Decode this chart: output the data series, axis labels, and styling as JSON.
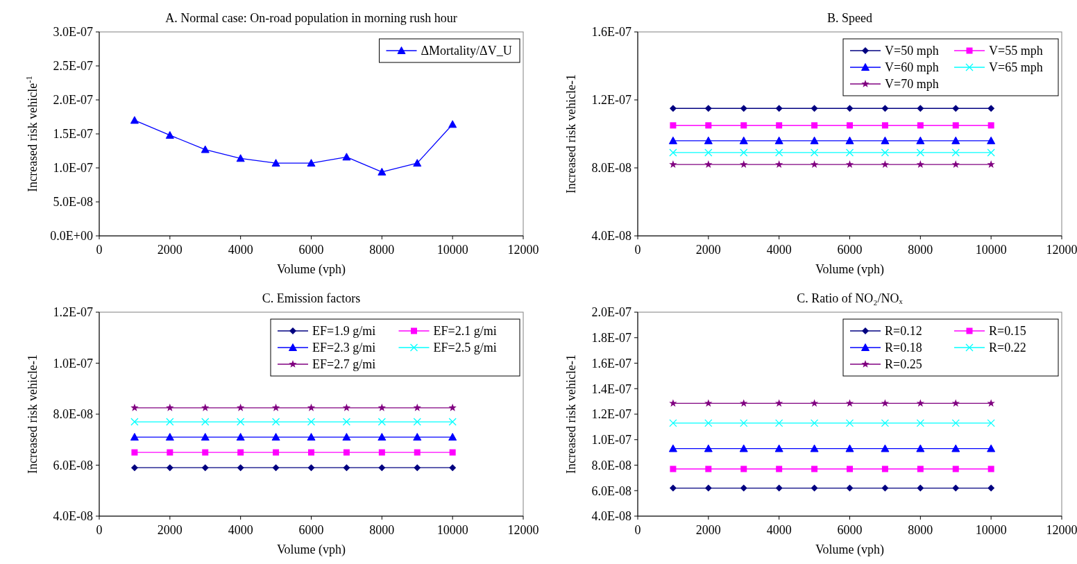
{
  "chart_data": [
    {
      "type": "line",
      "title": "A. Normal case: On-road population in morning rush hour",
      "xlabel": "Volume (vph)",
      "ylabel": "Increased risk vehicle$^{-1}$",
      "x": [
        1000,
        2000,
        3000,
        4000,
        5000,
        6000,
        7000,
        8000,
        9000,
        10000
      ],
      "xlim": [
        0,
        12000
      ],
      "xticks": [
        0,
        2000,
        4000,
        6000,
        8000,
        10000,
        12000
      ],
      "ylim": [
        0,
        3e-07
      ],
      "yticks": [
        {
          "value": 0,
          "label": "0.0E+00"
        },
        {
          "value": 5e-08,
          "label": "5.0E-08"
        },
        {
          "value": 1e-07,
          "label": "1.0E-07"
        },
        {
          "value": 1.5e-07,
          "label": "1.5E-07"
        },
        {
          "value": 2e-07,
          "label": "2.0E-07"
        },
        {
          "value": 2.5e-07,
          "label": "2.5E-07"
        },
        {
          "value": 3e-07,
          "label": "3.0E-07"
        }
      ],
      "legend": "top right",
      "grid": false,
      "series": [
        {
          "name": "ΔMortality/ΔV_U",
          "color": "#0000ff",
          "marker": "triangle",
          "values": [
            1.7e-07,
            1.48e-07,
            1.27e-07,
            1.14e-07,
            1.07e-07,
            1.07e-07,
            1.16e-07,
            9.4e-08,
            1.07e-07,
            1.64e-07
          ]
        }
      ]
    },
    {
      "type": "line",
      "title": "B. Speed",
      "xlabel": "Volume (vph)",
      "ylabel": "Increased risk vehicle-1",
      "x": [
        1000,
        2000,
        3000,
        4000,
        5000,
        6000,
        7000,
        8000,
        9000,
        10000
      ],
      "xlim": [
        0,
        12000
      ],
      "xticks": [
        0,
        2000,
        4000,
        6000,
        8000,
        10000,
        12000
      ],
      "ylim": [
        4e-08,
        1.6e-07
      ],
      "yticks": [
        {
          "value": 4e-08,
          "label": "4.0E-08"
        },
        {
          "value": 8e-08,
          "label": "8.0E-08"
        },
        {
          "value": 1.2e-07,
          "label": "1.2E-07"
        },
        {
          "value": 1.6e-07,
          "label": "1.6E-07"
        }
      ],
      "legend": "top right",
      "grid": false,
      "series": [
        {
          "name": "V=50 mph",
          "color": "#000080",
          "marker": "diamond",
          "values": [
            1.15e-07,
            1.15e-07,
            1.15e-07,
            1.15e-07,
            1.15e-07,
            1.15e-07,
            1.15e-07,
            1.15e-07,
            1.15e-07,
            1.15e-07
          ]
        },
        {
          "name": "V=55 mph",
          "color": "#ff00ff",
          "marker": "square",
          "values": [
            1.05e-07,
            1.05e-07,
            1.05e-07,
            1.05e-07,
            1.05e-07,
            1.05e-07,
            1.05e-07,
            1.05e-07,
            1.05e-07,
            1.05e-07
          ]
        },
        {
          "name": "V=60 mph",
          "color": "#0000ff",
          "marker": "triangle",
          "values": [
            9.6e-08,
            9.6e-08,
            9.6e-08,
            9.6e-08,
            9.6e-08,
            9.6e-08,
            9.6e-08,
            9.6e-08,
            9.6e-08,
            9.6e-08
          ]
        },
        {
          "name": "V=65 mph",
          "color": "#00ffff",
          "marker": "cross",
          "values": [
            8.9e-08,
            8.9e-08,
            8.9e-08,
            8.9e-08,
            8.9e-08,
            8.9e-08,
            8.9e-08,
            8.9e-08,
            8.9e-08,
            8.9e-08
          ]
        },
        {
          "name": "V=70 mph",
          "color": "#800080",
          "marker": "star",
          "values": [
            8.2e-08,
            8.2e-08,
            8.2e-08,
            8.2e-08,
            8.2e-08,
            8.2e-08,
            8.2e-08,
            8.2e-08,
            8.2e-08,
            8.2e-08
          ]
        }
      ]
    },
    {
      "type": "line",
      "title": "C. Emission factors",
      "xlabel": "Volume (vph)",
      "ylabel": "Increased risk vehicle-1",
      "x": [
        1000,
        2000,
        3000,
        4000,
        5000,
        6000,
        7000,
        8000,
        9000,
        10000
      ],
      "xlim": [
        0,
        12000
      ],
      "xticks": [
        0,
        2000,
        4000,
        6000,
        8000,
        10000,
        12000
      ],
      "ylim": [
        4e-08,
        1.2e-07
      ],
      "yticks": [
        {
          "value": 4e-08,
          "label": "4.0E-08"
        },
        {
          "value": 6e-08,
          "label": "6.0E-08"
        },
        {
          "value": 8e-08,
          "label": "8.0E-08"
        },
        {
          "value": 1e-07,
          "label": "1.0E-07"
        },
        {
          "value": 1.2e-07,
          "label": "1.2E-07"
        }
      ],
      "legend": "top right",
      "grid": false,
      "series": [
        {
          "name": "EF=1.9 g/mi",
          "color": "#000080",
          "marker": "diamond",
          "values": [
            5.9e-08,
            5.9e-08,
            5.9e-08,
            5.9e-08,
            5.9e-08,
            5.9e-08,
            5.9e-08,
            5.9e-08,
            5.9e-08,
            5.9e-08
          ]
        },
        {
          "name": "EF=2.1 g/mi",
          "color": "#ff00ff",
          "marker": "square",
          "values": [
            6.5e-08,
            6.5e-08,
            6.5e-08,
            6.5e-08,
            6.5e-08,
            6.5e-08,
            6.5e-08,
            6.5e-08,
            6.5e-08,
            6.5e-08
          ]
        },
        {
          "name": "EF=2.3 g/mi",
          "color": "#0000ff",
          "marker": "triangle",
          "values": [
            7.1e-08,
            7.1e-08,
            7.1e-08,
            7.1e-08,
            7.1e-08,
            7.1e-08,
            7.1e-08,
            7.1e-08,
            7.1e-08,
            7.1e-08
          ]
        },
        {
          "name": "EF=2.5 g/mi",
          "color": "#00ffff",
          "marker": "cross",
          "values": [
            7.7e-08,
            7.7e-08,
            7.7e-08,
            7.7e-08,
            7.7e-08,
            7.7e-08,
            7.7e-08,
            7.7e-08,
            7.7e-08,
            7.7e-08
          ]
        },
        {
          "name": "EF=2.7 g/mi",
          "color": "#800080",
          "marker": "star",
          "values": [
            8.25e-08,
            8.25e-08,
            8.25e-08,
            8.25e-08,
            8.25e-08,
            8.25e-08,
            8.25e-08,
            8.25e-08,
            8.25e-08,
            8.25e-08
          ]
        }
      ]
    },
    {
      "type": "line",
      "title": "C. Ratio of NO₂/NOₓ",
      "xlabel": "Volume (vph)",
      "ylabel": "Increased risk vehicle-1",
      "x": [
        1000,
        2000,
        3000,
        4000,
        5000,
        6000,
        7000,
        8000,
        9000,
        10000
      ],
      "xlim": [
        0,
        12000
      ],
      "xticks": [
        0,
        2000,
        4000,
        6000,
        8000,
        10000,
        12000
      ],
      "ylim": [
        4e-08,
        2e-07
      ],
      "yticks": [
        {
          "value": 4e-08,
          "label": "4.0E-08"
        },
        {
          "value": 6e-08,
          "label": "6.0E-08"
        },
        {
          "value": 8e-08,
          "label": "8.0E-08"
        },
        {
          "value": 1e-07,
          "label": "1.0E-07"
        },
        {
          "value": 1.2e-07,
          "label": "1.2E-07"
        },
        {
          "value": 1.4e-07,
          "label": "1.4E-07"
        },
        {
          "value": 1.6e-07,
          "label": "1.6E-07"
        },
        {
          "value": 1.8e-07,
          "label": "1.8E-07"
        },
        {
          "value": 2e-07,
          "label": "2.0E-07"
        }
      ],
      "legend": "top right",
      "grid": false,
      "series": [
        {
          "name": "R=0.12",
          "color": "#000080",
          "marker": "diamond",
          "values": [
            6.2e-08,
            6.2e-08,
            6.2e-08,
            6.2e-08,
            6.2e-08,
            6.2e-08,
            6.2e-08,
            6.2e-08,
            6.2e-08,
            6.2e-08
          ]
        },
        {
          "name": "R=0.15",
          "color": "#ff00ff",
          "marker": "square",
          "values": [
            7.7e-08,
            7.7e-08,
            7.7e-08,
            7.7e-08,
            7.7e-08,
            7.7e-08,
            7.7e-08,
            7.7e-08,
            7.7e-08,
            7.7e-08
          ]
        },
        {
          "name": "R=0.18",
          "color": "#0000ff",
          "marker": "triangle",
          "values": [
            9.3e-08,
            9.3e-08,
            9.3e-08,
            9.3e-08,
            9.3e-08,
            9.3e-08,
            9.3e-08,
            9.3e-08,
            9.3e-08,
            9.3e-08
          ]
        },
        {
          "name": "R=0.22",
          "color": "#00ffff",
          "marker": "cross",
          "values": [
            1.13e-07,
            1.13e-07,
            1.13e-07,
            1.13e-07,
            1.13e-07,
            1.13e-07,
            1.13e-07,
            1.13e-07,
            1.13e-07,
            1.13e-07
          ]
        },
        {
          "name": "R=0.25",
          "color": "#800080",
          "marker": "star",
          "values": [
            1.285e-07,
            1.285e-07,
            1.285e-07,
            1.285e-07,
            1.285e-07,
            1.285e-07,
            1.285e-07,
            1.285e-07,
            1.285e-07,
            1.285e-07
          ]
        }
      ]
    }
  ]
}
